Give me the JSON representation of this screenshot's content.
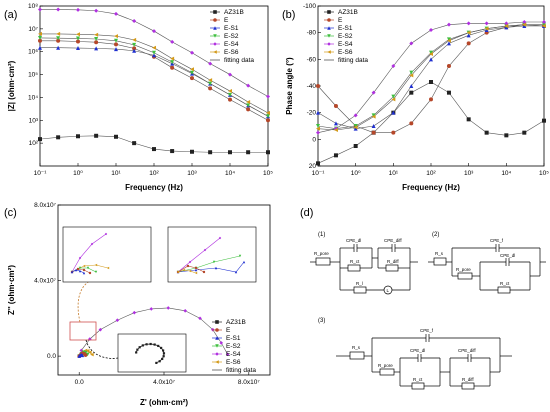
{
  "series_colors": {
    "AZ31B": "#222222",
    "E": "#b5472a",
    "E-S1": "#1f2fd0",
    "E-S2": "#3fbf3f",
    "E-S4": "#b030e0",
    "E-S6": "#d39a1a"
  },
  "fit_color": "#555555",
  "panels": {
    "a": {
      "label": "(a)",
      "ylabel": "|Z| (ohm·cm²)",
      "xlabel": "Frequency (Hz)",
      "xticks": [
        "10⁻¹",
        "10⁰",
        "10¹",
        "10²",
        "10³",
        "10⁴",
        "10⁵"
      ],
      "yticks": [
        "10²",
        "10³",
        "10⁴",
        "10⁵",
        "10⁶",
        "10⁷",
        "10⁸"
      ]
    },
    "b": {
      "label": "(b)",
      "ylabel": "Phase angle (°)",
      "xlabel": "Frequency (Hz)",
      "xticks": [
        "10⁻¹",
        "10⁰",
        "10¹",
        "10²",
        "10³",
        "10⁴",
        "10⁵"
      ],
      "yticks": [
        "-100",
        "-80",
        "-60",
        "-40",
        "-20",
        "0",
        "20"
      ]
    },
    "c": {
      "label": "(c)",
      "ylabel": "Z'' (ohm·cm²)",
      "xlabel": "Z' (ohm·cm²)",
      "xticks": [
        "0.0",
        "4.0x10⁷",
        "8.0x10⁷"
      ],
      "yticks": [
        "0.0",
        "4.0x10⁷",
        "8.0x10⁷"
      ]
    },
    "d": {
      "label": "(d)"
    }
  },
  "legend": {
    "entries": [
      "AZ31B",
      "E",
      "E-S1",
      "E-S2",
      "E-S4",
      "E-S6"
    ],
    "fit_label": "fitting data"
  },
  "circuits": {
    "c1": {
      "label": "(1)",
      "r_pore": "R_pore",
      "cpe_dl": "CPE_dl",
      "cpe_diff": "CPE_diff",
      "r_ct": "R_ct",
      "r_diff": "R_diff",
      "r_l": "R_l",
      "l": "L"
    },
    "c2": {
      "label": "(2)",
      "r_s": "R_s",
      "cpe_f": "CPE_f",
      "r_pore": "R_pore",
      "cpe_dl": "CPE_dl",
      "r_ct": "R_ct"
    },
    "c3": {
      "label": "(3)",
      "r_s": "R_s",
      "cpe_f": "CPE_f",
      "r_pore": "R_pore",
      "cpe_dl": "CPE_dl",
      "cpe_diff": "CPE_diff",
      "r_ct": "R_ct",
      "r_diff": "R_diff"
    }
  },
  "chart_data": [
    {
      "type": "scatter",
      "panel": "a",
      "xlabel": "Frequency (Hz)",
      "ylabel": "|Z| (ohm·cm²)",
      "xscale": "log",
      "yscale": "log",
      "xlim": [
        0.1,
        100000
      ],
      "ylim": [
        10,
        100000000
      ],
      "x": [
        0.1,
        0.3,
        1,
        3,
        10,
        30,
        100,
        300,
        1000,
        3000,
        10000,
        30000,
        100000
      ],
      "series": [
        {
          "name": "AZ31B",
          "values": [
            150,
            180,
            200,
            210,
            190,
            100,
            55,
            45,
            42,
            40,
            40,
            40,
            40
          ]
        },
        {
          "name": "E",
          "values": [
            3000000,
            3000000,
            2800000,
            2600000,
            2100000,
            1400000,
            600000,
            200000,
            70000,
            25000,
            8000,
            3000,
            1000
          ]
        },
        {
          "name": "E-S1",
          "values": [
            1500000,
            1500000,
            1450000,
            1400000,
            1300000,
            1100000,
            700000,
            300000,
            110000,
            40000,
            13000,
            4500,
            1500
          ]
        },
        {
          "name": "E-S2",
          "values": [
            4000000,
            3900000,
            3800000,
            3600000,
            3000000,
            2000000,
            900000,
            350000,
            120000,
            40000,
            13000,
            4500,
            1500
          ]
        },
        {
          "name": "E-S4",
          "values": [
            70000000,
            70000000,
            68000000,
            62000000,
            45000000,
            22000000,
            8000000,
            2700000,
            900000,
            300000,
            100000,
            33000,
            11000
          ]
        },
        {
          "name": "E-S6",
          "values": [
            6000000,
            6000000,
            5800000,
            5500000,
            4800000,
            3300000,
            1500000,
            500000,
            170000,
            57000,
            19000,
            6300,
            2100
          ]
        }
      ]
    },
    {
      "type": "scatter",
      "panel": "b",
      "xlabel": "Frequency (Hz)",
      "ylabel": "Phase angle (°)",
      "xscale": "log",
      "xlim": [
        0.1,
        100000
      ],
      "ylim": [
        20,
        -100
      ],
      "x": [
        0.1,
        0.3,
        1,
        3,
        10,
        30,
        100,
        300,
        1000,
        3000,
        10000,
        30000,
        100000
      ],
      "series": [
        {
          "name": "AZ31B",
          "values": [
            18,
            12,
            5,
            -5,
            -20,
            -35,
            -43,
            -35,
            -15,
            -5,
            -3,
            -5,
            -14
          ]
        },
        {
          "name": "E",
          "values": [
            -40,
            -25,
            -10,
            -5,
            -5,
            -12,
            -30,
            -55,
            -72,
            -80,
            -84,
            -86,
            -85
          ]
        },
        {
          "name": "E-S1",
          "values": [
            -20,
            -12,
            -8,
            -10,
            -20,
            -40,
            -60,
            -72,
            -78,
            -82,
            -84,
            -85,
            -85
          ]
        },
        {
          "name": "E-S2",
          "values": [
            -10,
            -8,
            -10,
            -18,
            -32,
            -50,
            -65,
            -75,
            -80,
            -83,
            -85,
            -86,
            -86
          ]
        },
        {
          "name": "E-S4",
          "values": [
            -5,
            -8,
            -18,
            -35,
            -55,
            -72,
            -82,
            -86,
            -87,
            -87,
            -87,
            -88,
            -88
          ]
        },
        {
          "name": "E-S6",
          "values": [
            -8,
            -7,
            -9,
            -17,
            -30,
            -48,
            -64,
            -74,
            -80,
            -83,
            -85,
            -86,
            -85
          ]
        }
      ]
    },
    {
      "type": "scatter",
      "panel": "c",
      "xlabel": "Z' (ohm·cm²)",
      "ylabel": "Z'' (ohm·cm²)",
      "xlim": [
        -10000000,
        90000000
      ],
      "ylim": [
        -10000000,
        80000000
      ],
      "series": [
        {
          "name": "E-S4",
          "x": [
            1000000,
            5000000,
            10000000,
            18000000,
            26000000,
            34000000,
            42000000,
            50000000,
            57000000,
            63000000,
            67000000,
            70000000
          ],
          "y": [
            3000000,
            9000000,
            14000000,
            19000000,
            23000000,
            25000000,
            25500000,
            24000000,
            20000000,
            14000000,
            7000000,
            1000000
          ]
        },
        {
          "name": "E-S6",
          "x": [
            0,
            1000000,
            2000000,
            3000000,
            4000000,
            5000000,
            6000000
          ],
          "y": [
            0,
            1500000,
            2500000,
            3000000,
            2800000,
            2000000,
            800000
          ]
        },
        {
          "name": "E-S2",
          "x": [
            0,
            1000000,
            2000000,
            3000000,
            4000000
          ],
          "y": [
            0,
            1200000,
            2000000,
            1800000,
            900000
          ]
        },
        {
          "name": "E",
          "x": [
            0,
            800000,
            1600000,
            2400000,
            3000000
          ],
          "y": [
            0,
            900000,
            1500000,
            1200000,
            500000
          ]
        },
        {
          "name": "E-S1",
          "x": [
            0,
            500000,
            1000000,
            1500000
          ],
          "y": [
            0,
            500000,
            700000,
            400000
          ]
        }
      ]
    }
  ]
}
